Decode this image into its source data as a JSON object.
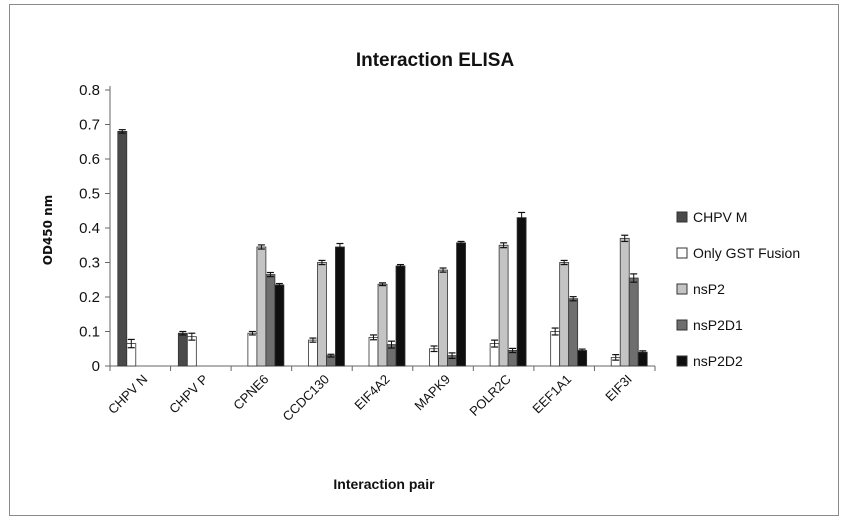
{
  "chart_data": {
    "type": "bar",
    "title": "Interaction ELISA",
    "xlabel": "Interaction pair",
    "ylabel": "OD450 nm",
    "ylim": [
      0,
      0.8
    ],
    "yticks": [
      "0",
      "0.1",
      "0.2",
      "0.3",
      "0.4",
      "0.5",
      "0.6",
      "0.7",
      "0.8"
    ],
    "categories": [
      "CHPV N",
      "CHPV P",
      "CPNE6",
      "CCDC130",
      "EIF4A2",
      "MAPK9",
      "POLR2C",
      "EEF1A1",
      "EIF3I"
    ],
    "legend_position": "right",
    "series": [
      {
        "name": "CHPV M",
        "color": "#4a4a4a",
        "values": [
          0.68,
          0.095,
          null,
          null,
          null,
          null,
          null,
          null,
          null
        ],
        "errors": [
          0.005,
          0.005,
          null,
          null,
          null,
          null,
          null,
          null,
          null
        ]
      },
      {
        "name": "Only GST Fusion",
        "color": "#ffffff",
        "values": [
          0.065,
          0.085,
          0.095,
          0.075,
          0.083,
          0.05,
          0.065,
          0.1,
          0.025
        ],
        "errors": [
          0.012,
          0.01,
          0.005,
          0.006,
          0.007,
          0.008,
          0.01,
          0.01,
          0.008
        ]
      },
      {
        "name": "nsP2",
        "color": "#c4c4c4",
        "values": [
          null,
          null,
          0.345,
          0.3,
          0.237,
          0.278,
          0.35,
          0.3,
          0.37
        ],
        "errors": [
          null,
          null,
          0.006,
          0.006,
          0.004,
          0.006,
          0.007,
          0.006,
          0.009
        ]
      },
      {
        "name": "nsP2D1",
        "color": "#6e6e6e",
        "values": [
          null,
          null,
          0.265,
          0.03,
          0.062,
          0.03,
          0.045,
          0.195,
          0.255
        ],
        "errors": [
          null,
          null,
          0.006,
          0.004,
          0.01,
          0.008,
          0.006,
          0.006,
          0.012
        ]
      },
      {
        "name": "nsP2D2",
        "color": "#0f0f0f",
        "values": [
          null,
          null,
          0.235,
          0.345,
          0.29,
          0.357,
          0.43,
          0.045,
          0.04
        ],
        "errors": [
          null,
          null,
          0.004,
          0.01,
          0.004,
          0.004,
          0.015,
          0.004,
          0.004
        ]
      }
    ]
  }
}
